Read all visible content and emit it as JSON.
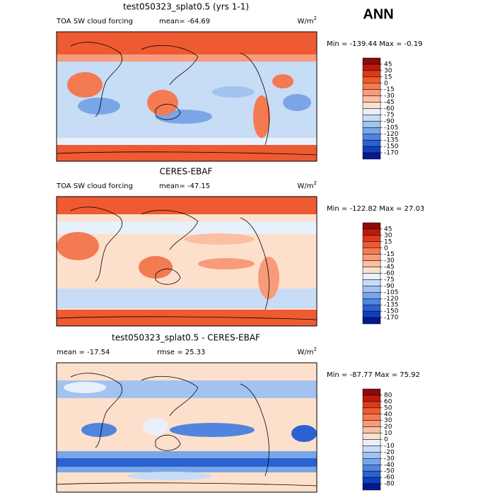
{
  "header": "ANN",
  "panels": [
    {
      "title": "test050323_splat0.5 (yrs 1-1)",
      "labels": [
        "TOA SW cloud forcing",
        "mean= -64.69"
      ],
      "unit": {
        "base": "W/m",
        "sup": "2"
      },
      "minmax": "Min = -139.44 Max =  -0.19",
      "colorbar": {
        "levels": [
          45,
          30,
          15,
          0,
          -15,
          -30,
          -45,
          -60,
          -75,
          -90,
          -105,
          -120,
          -135,
          -150,
          -170
        ],
        "colors": [
          "#8c0a0a",
          "#c0180f",
          "#dd3a1a",
          "#ee5a32",
          "#f47a52",
          "#f89b7a",
          "#fbbfa3",
          "#fde0cc",
          "#e8f0fb",
          "#c7dcf5",
          "#a2c3ef",
          "#7aa5e8",
          "#5084de",
          "#2a62d2",
          "#0e3fbd",
          "#06198c"
        ]
      }
    },
    {
      "title": "CERES-EBAF",
      "labels": [
        "TOA SW cloud forcing",
        "mean= -47.15"
      ],
      "unit": {
        "base": "W/m",
        "sup": "2"
      },
      "minmax": "Min = -122.82 Max =  27.03",
      "colorbar": {
        "levels": [
          45,
          30,
          15,
          0,
          -15,
          -30,
          -45,
          -60,
          -75,
          -90,
          -105,
          -120,
          -135,
          -150,
          -170
        ],
        "colors": [
          "#8c0a0a",
          "#c0180f",
          "#dd3a1a",
          "#ee5a32",
          "#f47a52",
          "#f89b7a",
          "#fbbfa3",
          "#fde0cc",
          "#e8f0fb",
          "#c7dcf5",
          "#a2c3ef",
          "#7aa5e8",
          "#5084de",
          "#2a62d2",
          "#0e3fbd",
          "#06198c"
        ]
      }
    },
    {
      "title": "test050323_splat0.5 - CERES-EBAF",
      "labels": [
        "mean = -17.54",
        "rmse =  25.33"
      ],
      "unit": {
        "base": "W/m",
        "sup": "2"
      },
      "minmax": "Min = -87.77 Max =  75.92",
      "colorbar": {
        "levels": [
          80,
          60,
          50,
          40,
          30,
          20,
          10,
          0,
          -10,
          -20,
          -30,
          -40,
          -50,
          -60,
          -80
        ],
        "colors": [
          "#8c0a0a",
          "#c0180f",
          "#dd3a1a",
          "#ee5a32",
          "#f47a52",
          "#f89b7a",
          "#fbbfa3",
          "#fde0cc",
          "#e8f0fb",
          "#c7dcf5",
          "#a2c3ef",
          "#7aa5e8",
          "#5084de",
          "#2a62d2",
          "#0e3fbd",
          "#06198c"
        ]
      }
    }
  ]
}
